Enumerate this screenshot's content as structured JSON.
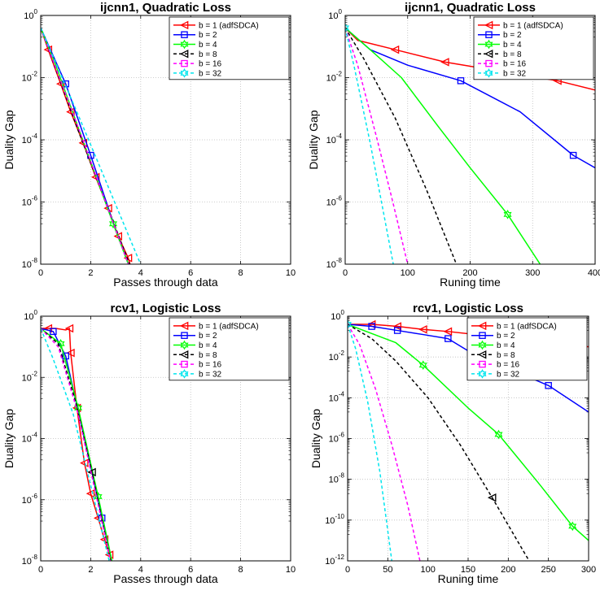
{
  "chart_data": [
    {
      "type": "line",
      "title": "ijcnn1, Quadratic Loss",
      "xlabel": "Passes through data",
      "ylabel": "Duality Gap",
      "xlim": [
        0,
        10
      ],
      "xticks": [
        "0",
        "2",
        "4",
        "6",
        "8",
        "10"
      ],
      "ylim_log10": [
        -8,
        0
      ],
      "yticks": [
        {
          "base": "10",
          "exp": "0"
        },
        {
          "base": "10",
          "exp": "-2"
        },
        {
          "base": "10",
          "exp": "-4"
        },
        {
          "base": "10",
          "exp": "-6"
        },
        {
          "base": "10",
          "exp": "-8"
        }
      ],
      "grid": true,
      "legend_position": "top-right",
      "series": [
        {
          "name": "b = 1 (adfSDCA)",
          "color": "#ff0000",
          "marker": "triangle-left",
          "x": [
            0,
            0.3,
            0.8,
            1.2,
            1.7,
            2.2,
            2.7,
            3.1,
            3.5,
            3.65
          ],
          "log10_y": [
            -0.4,
            -1.1,
            -2.2,
            -3.1,
            -4.1,
            -5.2,
            -6.2,
            -7.1,
            -7.8,
            -8.2
          ],
          "markers_at": [
            1,
            2,
            3,
            4,
            5,
            6,
            7,
            8
          ]
        },
        {
          "name": "b = 2",
          "color": "#0000ff",
          "marker": "square",
          "x": [
            0,
            1.0,
            2.0,
            3.0,
            3.6
          ],
          "log10_y": [
            -0.4,
            -2.2,
            -4.5,
            -6.9,
            -8.2
          ],
          "markers_at": [
            1,
            2
          ]
        },
        {
          "name": "b = 4",
          "color": "#00ff00",
          "marker": "hexagram",
          "x": [
            0,
            0.6,
            1.5,
            2.9,
            3.6
          ],
          "log10_y": [
            -0.4,
            -1.6,
            -3.6,
            -6.7,
            -8.2
          ],
          "markers_at": [
            3
          ]
        },
        {
          "name": "b = 8",
          "color": "#000000",
          "marker": "triangle-left",
          "dashed": true,
          "x": [
            0,
            1.5,
            3.65
          ],
          "log10_y": [
            -0.4,
            -3.7,
            -8.2
          ],
          "markers_at": []
        },
        {
          "name": "b = 16",
          "color": "#ff00ff",
          "marker": "square",
          "dashed": true,
          "x": [
            0,
            1.5,
            3.6
          ],
          "log10_y": [
            -0.4,
            -3.6,
            -8.2
          ],
          "markers_at": []
        },
        {
          "name": "b = 32",
          "color": "#00e5ee",
          "marker": "hexagram",
          "dashed": true,
          "x": [
            0,
            1.5,
            4.1
          ],
          "log10_y": [
            -0.4,
            -3.2,
            -8.2
          ],
          "markers_at": []
        }
      ]
    },
    {
      "type": "line",
      "title": "ijcnn1, Quadratic Loss",
      "xlabel": "Runing time",
      "ylabel": "Duality Gap",
      "xlim": [
        0,
        400
      ],
      "xticks": [
        "0",
        "100",
        "200",
        "300",
        "400"
      ],
      "ylim_log10": [
        -8,
        0
      ],
      "yticks": [
        {
          "base": "10",
          "exp": "0"
        },
        {
          "base": "10",
          "exp": "-2"
        },
        {
          "base": "10",
          "exp": "-4"
        },
        {
          "base": "10",
          "exp": "-6"
        },
        {
          "base": "10",
          "exp": "-8"
        }
      ],
      "grid": true,
      "legend_position": "top-right",
      "series": [
        {
          "name": "b = 1 (adfSDCA)",
          "color": "#ff0000",
          "marker": "triangle-left",
          "x": [
            0,
            20,
            80,
            160,
            250,
            340,
            400
          ],
          "log10_y": [
            -0.4,
            -0.8,
            -1.1,
            -1.5,
            -1.8,
            -2.1,
            -2.4
          ],
          "markers_at": [
            2,
            3,
            4,
            5
          ]
        },
        {
          "name": "b = 2",
          "color": "#0000ff",
          "marker": "square",
          "x": [
            0,
            40,
            100,
            185,
            280,
            365,
            400
          ],
          "log10_y": [
            -0.4,
            -1.1,
            -1.6,
            -2.1,
            -3.1,
            -4.5,
            -4.9
          ],
          "markers_at": [
            3,
            5
          ]
        },
        {
          "name": "b = 4",
          "color": "#00ff00",
          "marker": "hexagram",
          "x": [
            0,
            40,
            90,
            150,
            200,
            260,
            312
          ],
          "log10_y": [
            -0.4,
            -1.1,
            -2.0,
            -3.6,
            -4.9,
            -6.4,
            -8.0
          ],
          "markers_at": [
            5
          ]
        },
        {
          "name": "b = 8",
          "color": "#000000",
          "marker": "triangle-left",
          "dashed": true,
          "x": [
            0,
            30,
            80,
            130,
            178
          ],
          "log10_y": [
            -0.4,
            -1.4,
            -3.3,
            -5.6,
            -8.0
          ],
          "markers_at": []
        },
        {
          "name": "b = 16",
          "color": "#ff00ff",
          "marker": "square",
          "dashed": true,
          "x": [
            0,
            20,
            50,
            75,
            100
          ],
          "log10_y": [
            -0.4,
            -1.6,
            -3.9,
            -5.9,
            -8.0
          ],
          "markers_at": []
        },
        {
          "name": "b = 32",
          "color": "#00e5ee",
          "marker": "hexagram",
          "dashed": true,
          "x": [
            0,
            15,
            40,
            60,
            77
          ],
          "log10_y": [
            -0.4,
            -1.7,
            -4.1,
            -6.2,
            -8.0
          ],
          "markers_at": [
            0
          ]
        }
      ]
    },
    {
      "type": "line",
      "title": "rcv1, Logistic Loss",
      "xlabel": "Passes through data",
      "ylabel": "Duality Gap",
      "xlim": [
        0,
        10
      ],
      "xticks": [
        "0",
        "2",
        "4",
        "6",
        "8",
        "10"
      ],
      "ylim_log10": [
        -8,
        0
      ],
      "yticks": [
        {
          "base": "10",
          "exp": "0"
        },
        {
          "base": "10",
          "exp": "-2"
        },
        {
          "base": "10",
          "exp": "-4"
        },
        {
          "base": "10",
          "exp": "-6"
        },
        {
          "base": "10",
          "exp": "-8"
        }
      ],
      "grid": true,
      "legend_position": "top-right",
      "series": [
        {
          "name": "b = 1 (adfSDCA)",
          "color": "#ff0000",
          "marker": "triangle-left",
          "x": [
            0,
            0.3,
            0.6,
            1.0,
            1.15,
            1.2,
            1.45,
            1.75,
            2.0,
            2.3,
            2.55,
            2.75,
            2.9
          ],
          "log10_y": [
            -0.4,
            -0.4,
            -0.4,
            -0.45,
            -0.4,
            -1.2,
            -3.0,
            -4.8,
            -5.8,
            -6.6,
            -7.3,
            -7.8,
            -8.2
          ],
          "markers_at": [
            1,
            4,
            5,
            6,
            7,
            8,
            9,
            10,
            11
          ]
        },
        {
          "name": "b = 2",
          "color": "#0000ff",
          "marker": "square",
          "x": [
            0,
            0.5,
            1.0,
            1.5,
            2.0,
            2.45,
            2.9
          ],
          "log10_y": [
            -0.4,
            -0.5,
            -1.3,
            -3.1,
            -4.9,
            -6.6,
            -8.2
          ],
          "markers_at": [
            1,
            2,
            5
          ]
        },
        {
          "name": "b = 4",
          "color": "#00ff00",
          "marker": "hexagram",
          "x": [
            0,
            0.8,
            1.5,
            2.3,
            2.9
          ],
          "log10_y": [
            -0.4,
            -0.9,
            -3.0,
            -5.9,
            -8.2
          ],
          "markers_at": [
            1,
            2,
            3
          ]
        },
        {
          "name": "b = 8",
          "color": "#000000",
          "marker": "triangle-left",
          "dashed": true,
          "x": [
            0,
            0.7,
            1.4,
            2.05,
            2.85
          ],
          "log10_y": [
            -0.4,
            -0.9,
            -2.8,
            -5.1,
            -8.2
          ],
          "markers_at": [
            3
          ]
        },
        {
          "name": "b = 16",
          "color": "#ff00ff",
          "marker": "square",
          "dashed": true,
          "x": [
            0,
            0.7,
            1.5,
            2.85
          ],
          "log10_y": [
            -0.4,
            -1.0,
            -3.2,
            -8.2
          ],
          "markers_at": []
        },
        {
          "name": "b = 32",
          "color": "#00e5ee",
          "marker": "hexagram",
          "dashed": true,
          "x": [
            0,
            0.5,
            1.3,
            2.8
          ],
          "log10_y": [
            -0.4,
            -1.4,
            -3.2,
            -8.2
          ],
          "markers_at": []
        }
      ]
    },
    {
      "type": "line",
      "title": "rcv1, Logistic Loss",
      "xlabel": "Runing time",
      "ylabel": "Duality Gap",
      "xlim": [
        0,
        300
      ],
      "xticks": [
        "0",
        "50",
        "100",
        "150",
        "200",
        "250",
        "300"
      ],
      "ylim_log10": [
        -12,
        0
      ],
      "yticks": [
        {
          "base": "10",
          "exp": "0"
        },
        {
          "base": "10",
          "exp": "-2"
        },
        {
          "base": "10",
          "exp": "-4"
        },
        {
          "base": "10",
          "exp": "-6"
        },
        {
          "base": "10",
          "exp": "-8"
        },
        {
          "base": "10",
          "exp": "-10"
        },
        {
          "base": "10",
          "exp": "-12"
        }
      ],
      "grid": true,
      "legend_position": "top-right",
      "series": [
        {
          "name": "b = 1 (adfSDCA)",
          "color": "#ff0000",
          "marker": "triangle-left",
          "x": [
            0,
            30,
            62,
            94,
            125,
            160,
            195,
            230,
            262,
            300
          ],
          "log10_y": [
            -0.4,
            -0.4,
            -0.5,
            -0.65,
            -0.75,
            -0.9,
            -1.05,
            -1.2,
            -1.35,
            -1.5
          ],
          "markers_at": [
            1,
            2,
            3,
            4,
            5
          ]
        },
        {
          "name": "b = 2",
          "color": "#0000ff",
          "marker": "square",
          "x": [
            0,
            30,
            62,
            94,
            125,
            150,
            185,
            220,
            250,
            300
          ],
          "log10_y": [
            -0.4,
            -0.5,
            -0.7,
            -0.9,
            -1.1,
            -1.7,
            -2.4,
            -2.9,
            -3.4,
            -4.7
          ],
          "markers_at": [
            1,
            2,
            4,
            6,
            8
          ]
        },
        {
          "name": "b = 4",
          "color": "#00ff00",
          "marker": "hexagram",
          "x": [
            0,
            60,
            94,
            150,
            188,
            240,
            280,
            300
          ],
          "log10_y": [
            -0.4,
            -1.3,
            -2.4,
            -4.5,
            -5.8,
            -8.3,
            -10.3,
            -11.0
          ],
          "markers_at": [
            2,
            4,
            6
          ]
        },
        {
          "name": "b = 8",
          "color": "#000000",
          "marker": "triangle-left",
          "dashed": true,
          "x": [
            0,
            30,
            60,
            100,
            140,
            180,
            220,
            226
          ],
          "log10_y": [
            -0.4,
            -1.1,
            -2.2,
            -4.0,
            -6.3,
            -8.9,
            -11.6,
            -12.0
          ],
          "markers_at": [
            5
          ]
        },
        {
          "name": "b = 16",
          "color": "#ff00ff",
          "marker": "square",
          "dashed": true,
          "x": [
            0,
            15,
            35,
            55,
            75,
            90
          ],
          "log10_y": [
            -0.4,
            -1.4,
            -3.6,
            -6.3,
            -9.3,
            -12.0
          ],
          "markers_at": []
        },
        {
          "name": "b = 32",
          "color": "#00e5ee",
          "marker": "hexagram",
          "dashed": true,
          "x": [
            0,
            10,
            25,
            40,
            55
          ],
          "log10_y": [
            -0.4,
            -1.6,
            -4.2,
            -7.6,
            -12.0
          ],
          "markers_at": [
            0
          ]
        }
      ]
    }
  ]
}
